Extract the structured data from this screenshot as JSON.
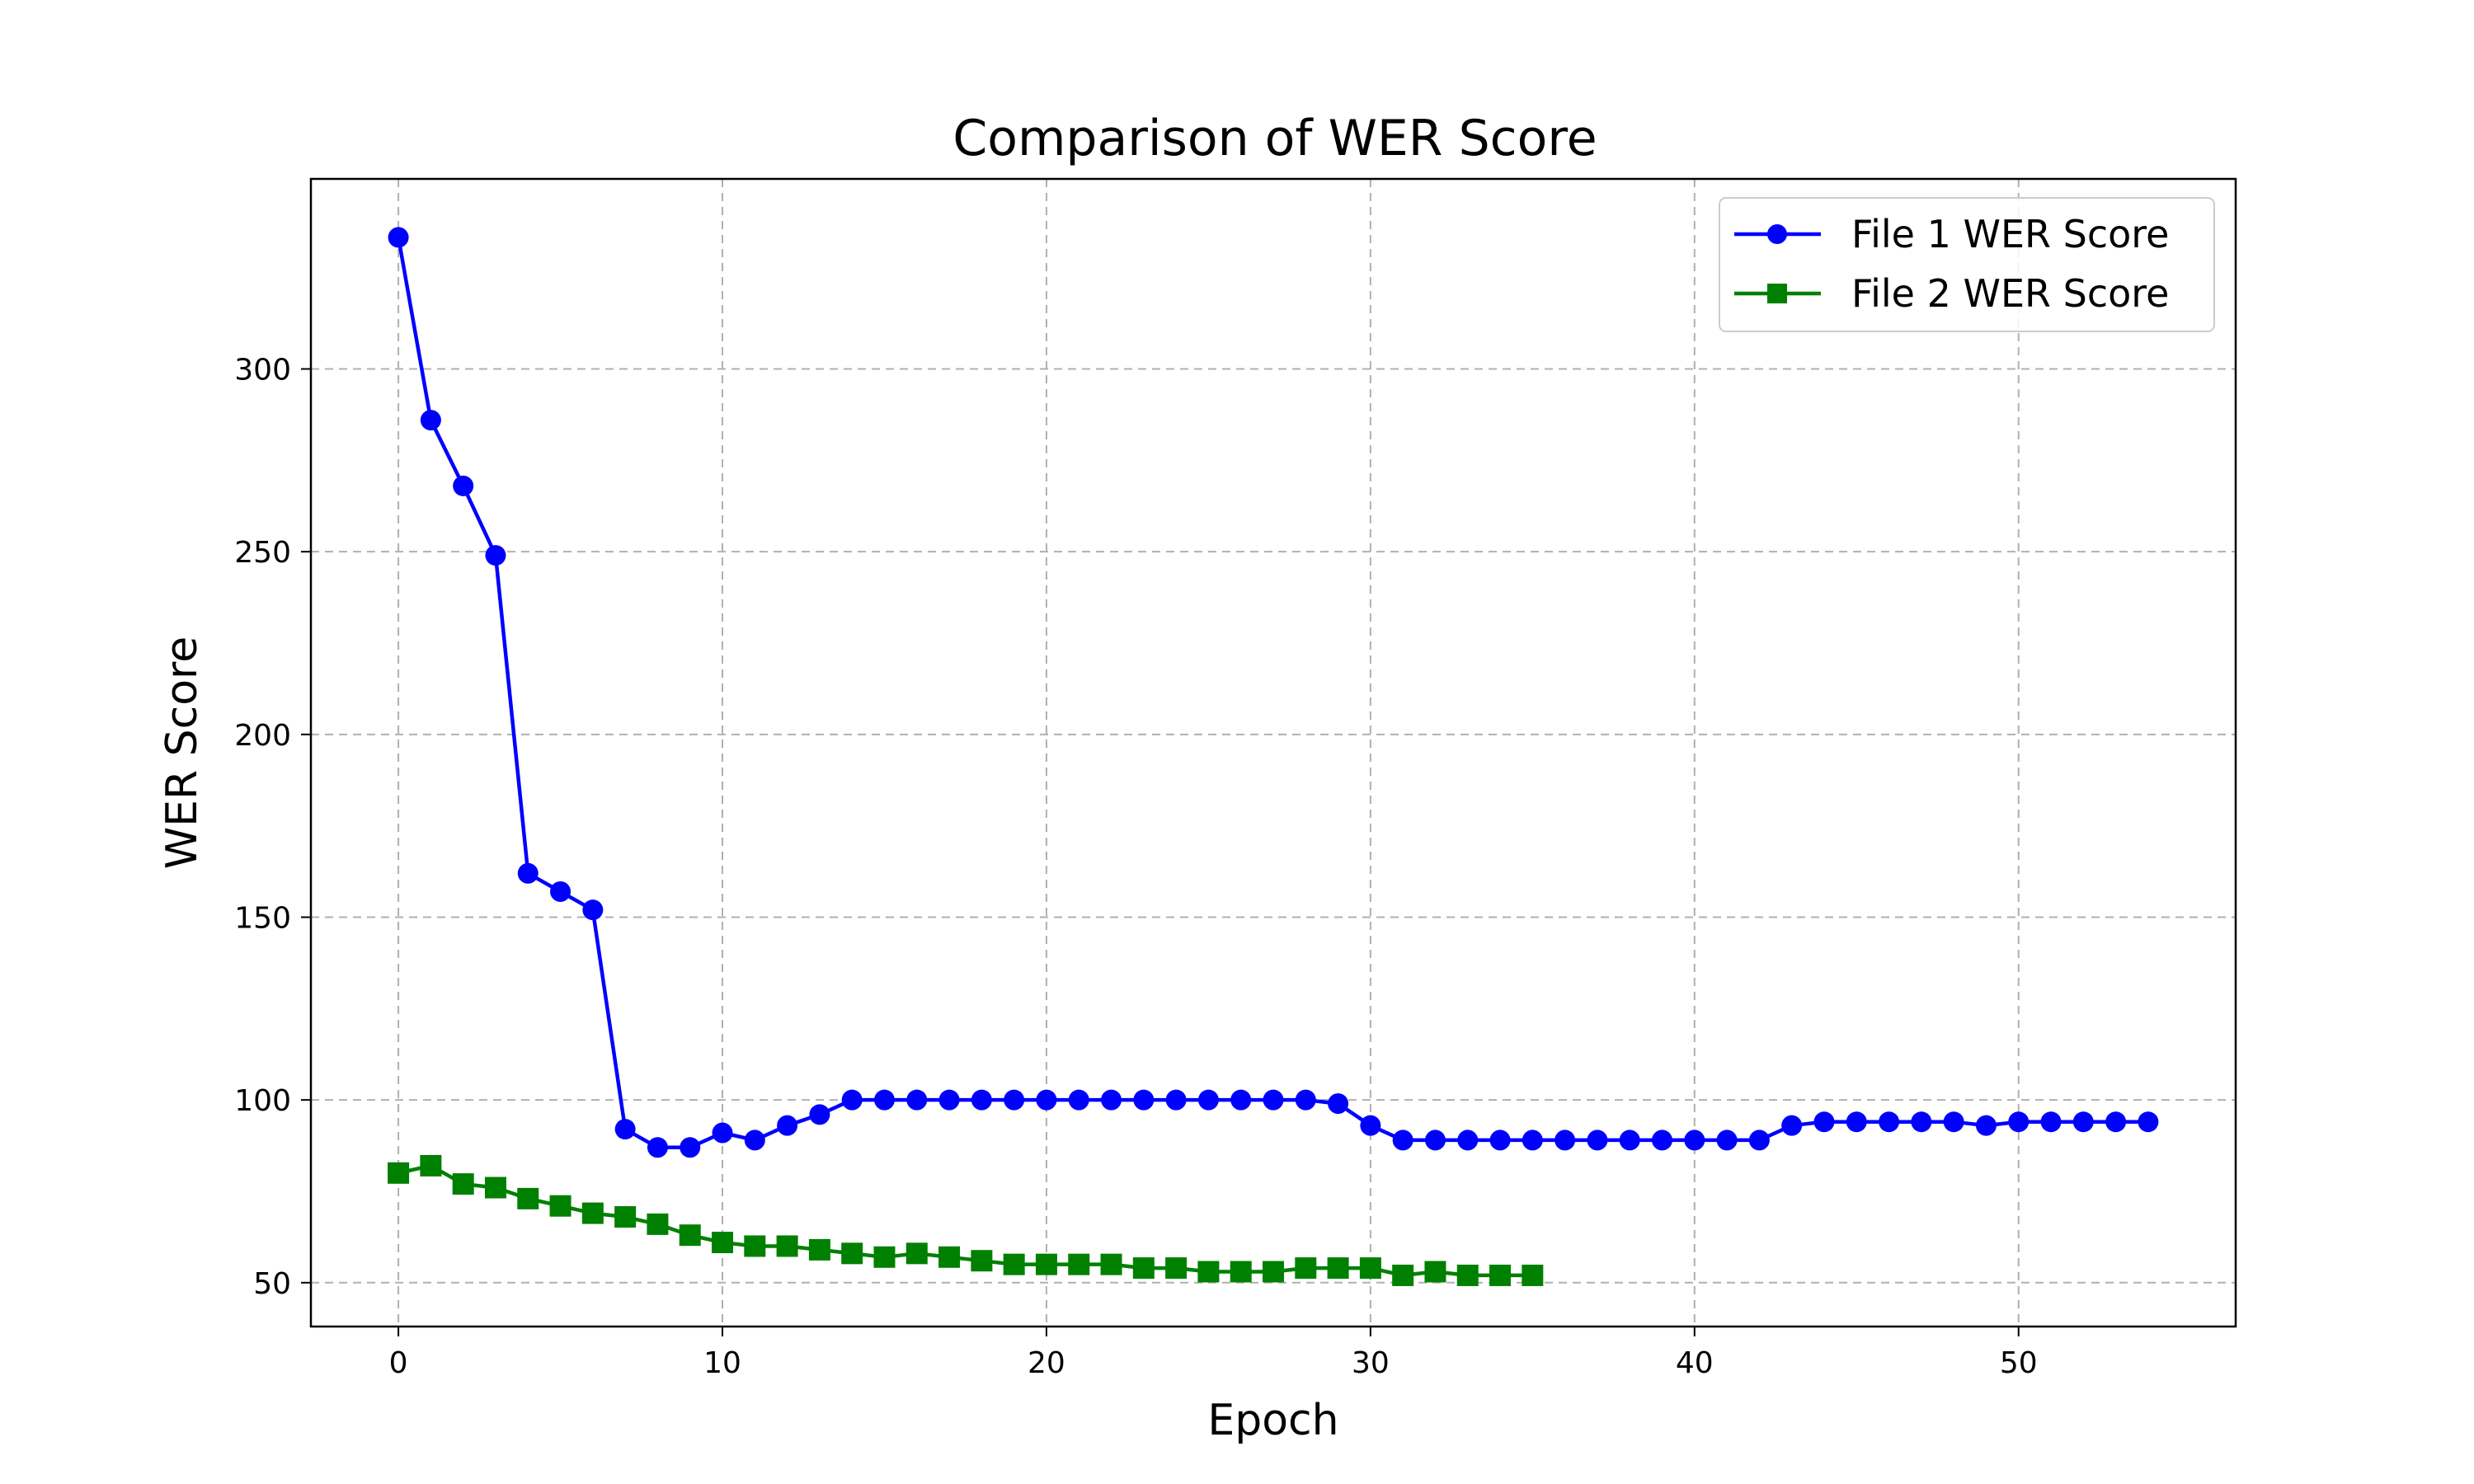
{
  "chart_data": {
    "type": "line",
    "title": "Comparison of WER Score",
    "xlabel": "Epoch",
    "ylabel": "WER Score",
    "xlim": [
      -2.7,
      56.7
    ],
    "ylim": [
      38,
      352
    ],
    "xticks": [
      0,
      10,
      20,
      30,
      40,
      50
    ],
    "yticks": [
      50,
      100,
      150,
      200,
      250,
      300
    ],
    "grid": true,
    "legend_position": "upper right",
    "series": [
      {
        "name": "File 1 WER Score",
        "color": "#0000ff",
        "marker": "circle",
        "x": [
          0,
          1,
          2,
          3,
          4,
          5,
          6,
          7,
          8,
          9,
          10,
          11,
          12,
          13,
          14,
          15,
          16,
          17,
          18,
          19,
          20,
          21,
          22,
          23,
          24,
          25,
          26,
          27,
          28,
          29,
          30,
          31,
          32,
          33,
          34,
          35,
          36,
          37,
          38,
          39,
          40,
          41,
          42,
          43,
          44,
          45,
          46,
          47,
          48,
          49,
          50,
          51,
          52,
          53,
          54
        ],
        "values": [
          336,
          286,
          268,
          249,
          162,
          157,
          152,
          92,
          87,
          87,
          91,
          89,
          93,
          96,
          100,
          100,
          100,
          100,
          100,
          100,
          100,
          100,
          100,
          100,
          100,
          100,
          100,
          100,
          100,
          99,
          93,
          89,
          89,
          89,
          89,
          89,
          89,
          89,
          89,
          89,
          89,
          89,
          89,
          93,
          94,
          94,
          94,
          94,
          94,
          93,
          94,
          94,
          94,
          94,
          94
        ]
      },
      {
        "name": "File 2 WER Score",
        "color": "#008000",
        "marker": "square",
        "x": [
          0,
          1,
          2,
          3,
          4,
          5,
          6,
          7,
          8,
          9,
          10,
          11,
          12,
          13,
          14,
          15,
          16,
          17,
          18,
          19,
          20,
          21,
          22,
          23,
          24,
          25,
          26,
          27,
          28,
          29,
          30,
          31,
          32,
          33,
          34,
          35
        ],
        "values": [
          80,
          82,
          77,
          76,
          73,
          71,
          69,
          68,
          66,
          63,
          61,
          60,
          60,
          59,
          58,
          57,
          58,
          57,
          56,
          55,
          55,
          55,
          55,
          54,
          54,
          53,
          53,
          53,
          54,
          54,
          54,
          52,
          53,
          52,
          52,
          52
        ]
      }
    ]
  }
}
